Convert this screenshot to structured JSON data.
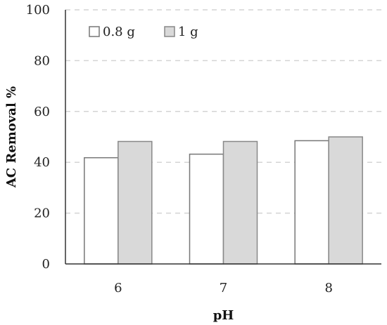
{
  "chart_data": {
    "type": "bar",
    "categories": [
      "6",
      "7",
      "8"
    ],
    "series": [
      {
        "name": "0.8 g",
        "values": [
          41.8,
          43.2,
          48.5
        ],
        "color": "#ffffff",
        "stroke": "#777777"
      },
      {
        "name": "1 g",
        "values": [
          48.2,
          48.2,
          50.0
        ],
        "color": "#d9d9d9",
        "stroke": "#888888"
      }
    ],
    "xlabel": "pH",
    "ylabel": "AC Removal %",
    "ylim": [
      0,
      100
    ],
    "yticks": [
      0,
      20,
      40,
      60,
      80,
      100
    ],
    "grid": true,
    "legend_position": "top-left"
  }
}
